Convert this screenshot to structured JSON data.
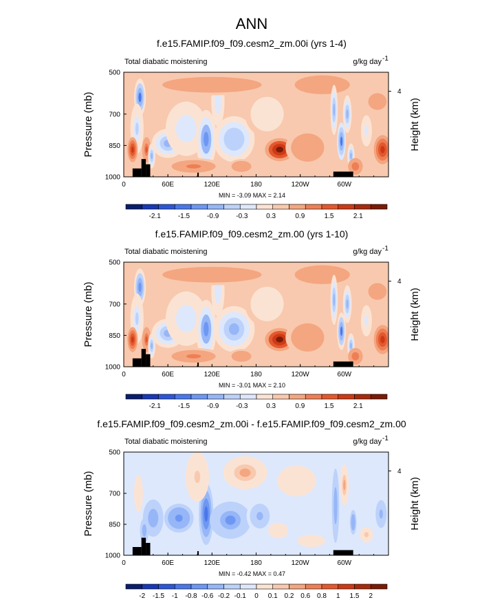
{
  "figure": {
    "suptitle": "ANN",
    "colors": {
      "background": "#ffffff",
      "frame": "#000000",
      "topography": "#000000"
    }
  },
  "chart_data": [
    {
      "type": "heatmap",
      "title": "f.e15.FAMIP.f09_f09.cesm2_zm.00i (yrs 1-4)",
      "left_label": "Total diabatic moistening",
      "units_label": "g/kg day",
      "units_exp": "-1",
      "ylabel": "Pressure (mb)",
      "ylabel_right": "Height (km)",
      "x_ticks": [
        "0",
        "60E",
        "120E",
        "180",
        "120W",
        "60W"
      ],
      "x_tick_values": [
        0,
        60,
        120,
        180,
        240,
        300
      ],
      "xlim": [
        0,
        360
      ],
      "y_ticks": [
        "500",
        "700",
        "850",
        "1000"
      ],
      "y_tick_values": [
        500,
        700,
        850,
        1000
      ],
      "ylim": [
        1000,
        500
      ],
      "y_right_ticks": [
        "4"
      ],
      "y_right_tick_values": [
        4
      ],
      "min_label": "MIN = -3.09  MAX =  2.14",
      "min": -3.09,
      "max": 2.14,
      "colorbar": {
        "labels": [
          "-2.1",
          "-1.5",
          "-0.9",
          "-0.3",
          "0.3",
          "0.9",
          "1.5",
          "2.1"
        ],
        "colors": [
          "#0a1e6e",
          "#1838b5",
          "#2d57d6",
          "#4a78ea",
          "#6d97f2",
          "#96b6f7",
          "#bcd2fa",
          "#dde8fc",
          "#fbe3d4",
          "#f8c9ae",
          "#f4a680",
          "#ee7f55",
          "#e4582e",
          "#cc3a16",
          "#a82a0c",
          "#7a1b06"
        ]
      },
      "features": [
        {
          "lon": 22,
          "p": 620,
          "w": 8,
          "h": 90,
          "v": -1.8
        },
        {
          "lon": 18,
          "p": 770,
          "w": 9,
          "h": 120,
          "v": -0.9
        },
        {
          "lon": 12,
          "p": 870,
          "w": 7,
          "h": 60,
          "v": 1.3
        },
        {
          "lon": 31,
          "p": 870,
          "w": 6,
          "h": 60,
          "v": 1.0
        },
        {
          "lon": 38,
          "p": 900,
          "w": 5,
          "h": 60,
          "v": -1.4
        },
        {
          "lon": 60,
          "p": 840,
          "w": 22,
          "h": 70,
          "v": -1.3
        },
        {
          "lon": 85,
          "p": 770,
          "w": 28,
          "h": 130,
          "v": -0.7
        },
        {
          "lon": 112,
          "p": 820,
          "w": 14,
          "h": 140,
          "v": -1.6
        },
        {
          "lon": 128,
          "p": 640,
          "w": 9,
          "h": 120,
          "v": -0.7
        },
        {
          "lon": 150,
          "p": 820,
          "w": 28,
          "h": 110,
          "v": -1.1
        },
        {
          "lon": 95,
          "p": 950,
          "w": 40,
          "h": 40,
          "v": 0.6
        },
        {
          "lon": 160,
          "p": 950,
          "w": 18,
          "h": 35,
          "v": 0.4
        },
        {
          "lon": 195,
          "p": 700,
          "w": 30,
          "h": 110,
          "v": -0.3
        },
        {
          "lon": 212,
          "p": 870,
          "w": 20,
          "h": 55,
          "v": 1.9
        },
        {
          "lon": 250,
          "p": 860,
          "w": 30,
          "h": 90,
          "v": 0.5
        },
        {
          "lon": 120,
          "p": 560,
          "w": 90,
          "h": 50,
          "v": 0.4
        },
        {
          "lon": 270,
          "p": 560,
          "w": 50,
          "h": 60,
          "v": 0.5
        },
        {
          "lon": 286,
          "p": 680,
          "w": 5,
          "h": 120,
          "v": -1.4
        },
        {
          "lon": 296,
          "p": 830,
          "w": 6,
          "h": 90,
          "v": -1.9
        },
        {
          "lon": 304,
          "p": 700,
          "w": 6,
          "h": 90,
          "v": -1.2
        },
        {
          "lon": 309,
          "p": 900,
          "w": 5,
          "h": 60,
          "v": -1.4
        },
        {
          "lon": 330,
          "p": 780,
          "w": 10,
          "h": 100,
          "v": -0.5
        },
        {
          "lon": 352,
          "p": 870,
          "w": 12,
          "h": 70,
          "v": 1.4
        },
        {
          "lon": 315,
          "p": 950,
          "w": 10,
          "h": 40,
          "v": 0.8
        },
        {
          "lon": 345,
          "p": 640,
          "w": 25,
          "h": 80,
          "v": 0.3
        }
      ],
      "topography": [
        {
          "lon0": 12,
          "lon1": 24,
          "p": 960
        },
        {
          "lon0": 24,
          "lon1": 30,
          "p": 915
        },
        {
          "lon0": 30,
          "lon1": 36,
          "p": 940
        },
        {
          "lon0": 100,
          "lon1": 102,
          "p": 980
        },
        {
          "lon0": 285,
          "lon1": 312,
          "p": 975
        }
      ]
    },
    {
      "type": "heatmap",
      "title": "f.e15.FAMIP.f09_f09.cesm2_zm.00 (yrs 1-10)",
      "left_label": "Total diabatic moistening",
      "units_label": "g/kg day",
      "units_exp": "-1",
      "ylabel": "Pressure (mb)",
      "ylabel_right": "Height (km)",
      "x_ticks": [
        "0",
        "60E",
        "120E",
        "180",
        "120W",
        "60W"
      ],
      "x_tick_values": [
        0,
        60,
        120,
        180,
        240,
        300
      ],
      "xlim": [
        0,
        360
      ],
      "y_ticks": [
        "500",
        "700",
        "850",
        "1000"
      ],
      "y_tick_values": [
        500,
        700,
        850,
        1000
      ],
      "ylim": [
        1000,
        500
      ],
      "y_right_ticks": [
        "4"
      ],
      "y_right_tick_values": [
        4
      ],
      "min_label": "MIN = -3.01  MAX =  2.10",
      "min": -3.01,
      "max": 2.1,
      "colorbar": {
        "labels": [
          "-2.1",
          "-1.5",
          "-0.9",
          "-0.3",
          "0.3",
          "0.9",
          "1.5",
          "2.1"
        ],
        "colors": [
          "#0a1e6e",
          "#1838b5",
          "#2d57d6",
          "#4a78ea",
          "#6d97f2",
          "#96b6f7",
          "#bcd2fa",
          "#dde8fc",
          "#fbe3d4",
          "#f8c9ae",
          "#f4a680",
          "#ee7f55",
          "#e4582e",
          "#cc3a16",
          "#a82a0c",
          "#7a1b06"
        ]
      },
      "features": [
        {
          "lon": 22,
          "p": 620,
          "w": 8,
          "h": 90,
          "v": -1.7
        },
        {
          "lon": 18,
          "p": 770,
          "w": 9,
          "h": 120,
          "v": -0.9
        },
        {
          "lon": 12,
          "p": 870,
          "w": 7,
          "h": 60,
          "v": 1.2
        },
        {
          "lon": 31,
          "p": 870,
          "w": 6,
          "h": 60,
          "v": 1.0
        },
        {
          "lon": 38,
          "p": 900,
          "w": 5,
          "h": 60,
          "v": -1.3
        },
        {
          "lon": 60,
          "p": 840,
          "w": 22,
          "h": 70,
          "v": -1.2
        },
        {
          "lon": 85,
          "p": 770,
          "w": 28,
          "h": 130,
          "v": -0.7
        },
        {
          "lon": 112,
          "p": 820,
          "w": 14,
          "h": 140,
          "v": -1.5
        },
        {
          "lon": 128,
          "p": 640,
          "w": 9,
          "h": 120,
          "v": -0.7
        },
        {
          "lon": 150,
          "p": 820,
          "w": 28,
          "h": 110,
          "v": -1.2
        },
        {
          "lon": 95,
          "p": 950,
          "w": 40,
          "h": 40,
          "v": 0.6
        },
        {
          "lon": 160,
          "p": 950,
          "w": 18,
          "h": 35,
          "v": 0.4
        },
        {
          "lon": 195,
          "p": 700,
          "w": 30,
          "h": 110,
          "v": -0.3
        },
        {
          "lon": 212,
          "p": 870,
          "w": 20,
          "h": 55,
          "v": 1.8
        },
        {
          "lon": 250,
          "p": 860,
          "w": 30,
          "h": 90,
          "v": 0.5
        },
        {
          "lon": 120,
          "p": 560,
          "w": 90,
          "h": 50,
          "v": 0.4
        },
        {
          "lon": 270,
          "p": 560,
          "w": 50,
          "h": 60,
          "v": 0.5
        },
        {
          "lon": 286,
          "p": 680,
          "w": 5,
          "h": 120,
          "v": -1.3
        },
        {
          "lon": 296,
          "p": 830,
          "w": 6,
          "h": 90,
          "v": -1.8
        },
        {
          "lon": 304,
          "p": 700,
          "w": 6,
          "h": 90,
          "v": -1.2
        },
        {
          "lon": 309,
          "p": 900,
          "w": 5,
          "h": 60,
          "v": -1.3
        },
        {
          "lon": 330,
          "p": 780,
          "w": 10,
          "h": 100,
          "v": -0.5
        },
        {
          "lon": 352,
          "p": 870,
          "w": 12,
          "h": 70,
          "v": 1.3
        },
        {
          "lon": 315,
          "p": 950,
          "w": 10,
          "h": 40,
          "v": 0.8
        },
        {
          "lon": 345,
          "p": 640,
          "w": 25,
          "h": 80,
          "v": 0.3
        }
      ],
      "topography": [
        {
          "lon0": 12,
          "lon1": 24,
          "p": 960
        },
        {
          "lon0": 24,
          "lon1": 30,
          "p": 915
        },
        {
          "lon0": 30,
          "lon1": 36,
          "p": 940
        },
        {
          "lon0": 100,
          "lon1": 102,
          "p": 980
        },
        {
          "lon0": 285,
          "lon1": 312,
          "p": 975
        }
      ]
    },
    {
      "type": "heatmap",
      "title": "f.e15.FAMIP.f09_f09.cesm2_zm.00i - f.e15.FAMIP.f09_f09.cesm2_zm.00",
      "left_label": "Total diabatic moistening",
      "units_label": "g/kg day",
      "units_exp": "-1",
      "ylabel": "Pressure (mb)",
      "ylabel_right": "Height (km)",
      "x_ticks": [
        "0",
        "60E",
        "120E",
        "180",
        "120W",
        "60W"
      ],
      "x_tick_values": [
        0,
        60,
        120,
        180,
        240,
        300
      ],
      "xlim": [
        0,
        360
      ],
      "y_ticks": [
        "500",
        "700",
        "850",
        "1000"
      ],
      "y_tick_values": [
        500,
        700,
        850,
        1000
      ],
      "ylim": [
        1000,
        500
      ],
      "y_right_ticks": [
        "4"
      ],
      "y_right_tick_values": [
        4
      ],
      "min_label": "MIN = -0.42  MAX =  0.47",
      "min": -0.42,
      "max": 0.47,
      "colorbar": {
        "labels": [
          "-2",
          "-1.5",
          "-1",
          "-0.8",
          "-0.6",
          "-0.2",
          "-0.1",
          "0",
          "0.1",
          "0.2",
          "0.6",
          "0.8",
          "1",
          "1.5",
          "2"
        ],
        "colors": [
          "#0a1e6e",
          "#1838b5",
          "#2d57d6",
          "#4a78ea",
          "#6d97f2",
          "#96b6f7",
          "#bcd2fa",
          "#dde8fc",
          "#fbe3d4",
          "#f8c9ae",
          "#f4a680",
          "#ee7f55",
          "#e4582e",
          "#cc3a16",
          "#a82a0c",
          "#7a1b06"
        ]
      },
      "features": [
        {
          "lon": 40,
          "p": 820,
          "w": 14,
          "h": 90,
          "v": -0.14
        },
        {
          "lon": 75,
          "p": 820,
          "w": 20,
          "h": 70,
          "v": -0.18
        },
        {
          "lon": 112,
          "p": 800,
          "w": 10,
          "h": 150,
          "v": -0.24
        },
        {
          "lon": 145,
          "p": 830,
          "w": 28,
          "h": 90,
          "v": -0.17
        },
        {
          "lon": 185,
          "p": 810,
          "w": 18,
          "h": 80,
          "v": -0.1
        },
        {
          "lon": 100,
          "p": 620,
          "w": 16,
          "h": 120,
          "v": 0.1
        },
        {
          "lon": 165,
          "p": 600,
          "w": 30,
          "h": 80,
          "v": 0.16
        },
        {
          "lon": 235,
          "p": 640,
          "w": 35,
          "h": 100,
          "v": 0.08
        },
        {
          "lon": 210,
          "p": 880,
          "w": 18,
          "h": 50,
          "v": 0.07
        },
        {
          "lon": 20,
          "p": 700,
          "w": 8,
          "h": 120,
          "v": 0.08
        },
        {
          "lon": 28,
          "p": 880,
          "w": 6,
          "h": 60,
          "v": -0.14
        },
        {
          "lon": 288,
          "p": 760,
          "w": 5,
          "h": 180,
          "v": -0.14
        },
        {
          "lon": 300,
          "p": 660,
          "w": 6,
          "h": 100,
          "v": 0.14
        },
        {
          "lon": 312,
          "p": 840,
          "w": 6,
          "h": 80,
          "v": -0.12
        },
        {
          "lon": 330,
          "p": 900,
          "w": 12,
          "h": 50,
          "v": 0.09
        },
        {
          "lon": 350,
          "p": 800,
          "w": 10,
          "h": 90,
          "v": -0.1
        },
        {
          "lon": 255,
          "p": 930,
          "w": 25,
          "h": 40,
          "v": 0.05
        }
      ],
      "topography": [
        {
          "lon0": 12,
          "lon1": 24,
          "p": 960
        },
        {
          "lon0": 24,
          "lon1": 30,
          "p": 915
        },
        {
          "lon0": 30,
          "lon1": 36,
          "p": 940
        },
        {
          "lon0": 100,
          "lon1": 102,
          "p": 980
        },
        {
          "lon0": 285,
          "lon1": 312,
          "p": 975
        }
      ]
    }
  ]
}
